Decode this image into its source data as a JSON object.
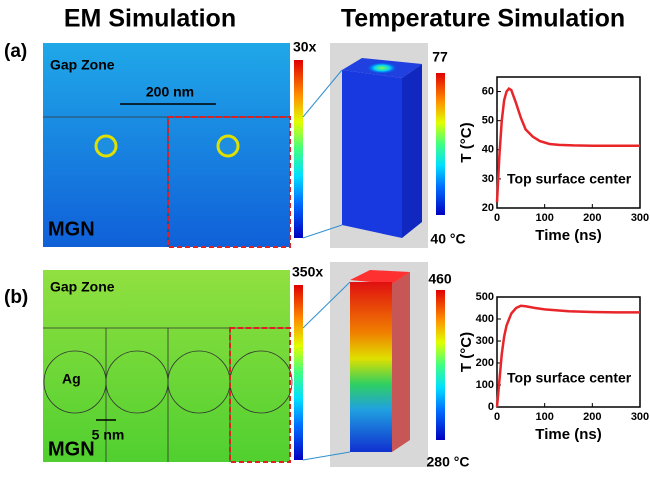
{
  "figure": {
    "headers": [
      "EM Simulation",
      "Temperature Simulation"
    ],
    "panels": [
      {
        "label": "(a)",
        "gap_zone": "Gap Zone",
        "substrate": "MGN",
        "spacing": "200 nm",
        "em_scale_max": "30x",
        "temp_max": "77",
        "temp_min": "40 °C"
      },
      {
        "label": "(b)",
        "gap_zone": "Gap Zone",
        "substrate": "MGN",
        "spacing": "5 nm",
        "particle": "Ag",
        "em_scale_max": "350x",
        "temp_max": "460",
        "temp_min": "280 °C"
      }
    ]
  },
  "chart_data": [
    {
      "type": "line",
      "x_label": "Time (ns)",
      "y_label": "T (°C)",
      "annotation": "Top surface center",
      "xlim": [
        0,
        300
      ],
      "xticks": [
        0,
        100,
        200,
        300
      ],
      "ylim": [
        20,
        65
      ],
      "yticks": [
        20,
        30,
        40,
        50,
        60
      ],
      "series": [
        {
          "color": "#e8262a",
          "x": [
            0,
            5,
            10,
            15,
            20,
            25,
            30,
            40,
            50,
            60,
            75,
            90,
            110,
            130,
            160,
            200,
            250,
            300
          ],
          "values": [
            22,
            38,
            50,
            57,
            60,
            61,
            60.5,
            56,
            51,
            47,
            44.5,
            43,
            42,
            41.7,
            41.5,
            41.4,
            41.4,
            41.4
          ]
        }
      ]
    },
    {
      "type": "line",
      "x_label": "Time (ns)",
      "y_label": "T (°C)",
      "annotation": "Top surface center",
      "xlim": [
        0,
        300
      ],
      "xticks": [
        0,
        100,
        200,
        300
      ],
      "ylim": [
        0,
        500
      ],
      "yticks": [
        0,
        100,
        200,
        300,
        400,
        500
      ],
      "series": [
        {
          "color": "#e8262a",
          "x": [
            0,
            5,
            10,
            15,
            20,
            30,
            40,
            50,
            60,
            80,
            100,
            150,
            200,
            250,
            300
          ],
          "values": [
            0,
            120,
            240,
            320,
            370,
            425,
            450,
            460,
            458,
            450,
            444,
            435,
            432,
            430,
            430
          ]
        }
      ]
    }
  ]
}
